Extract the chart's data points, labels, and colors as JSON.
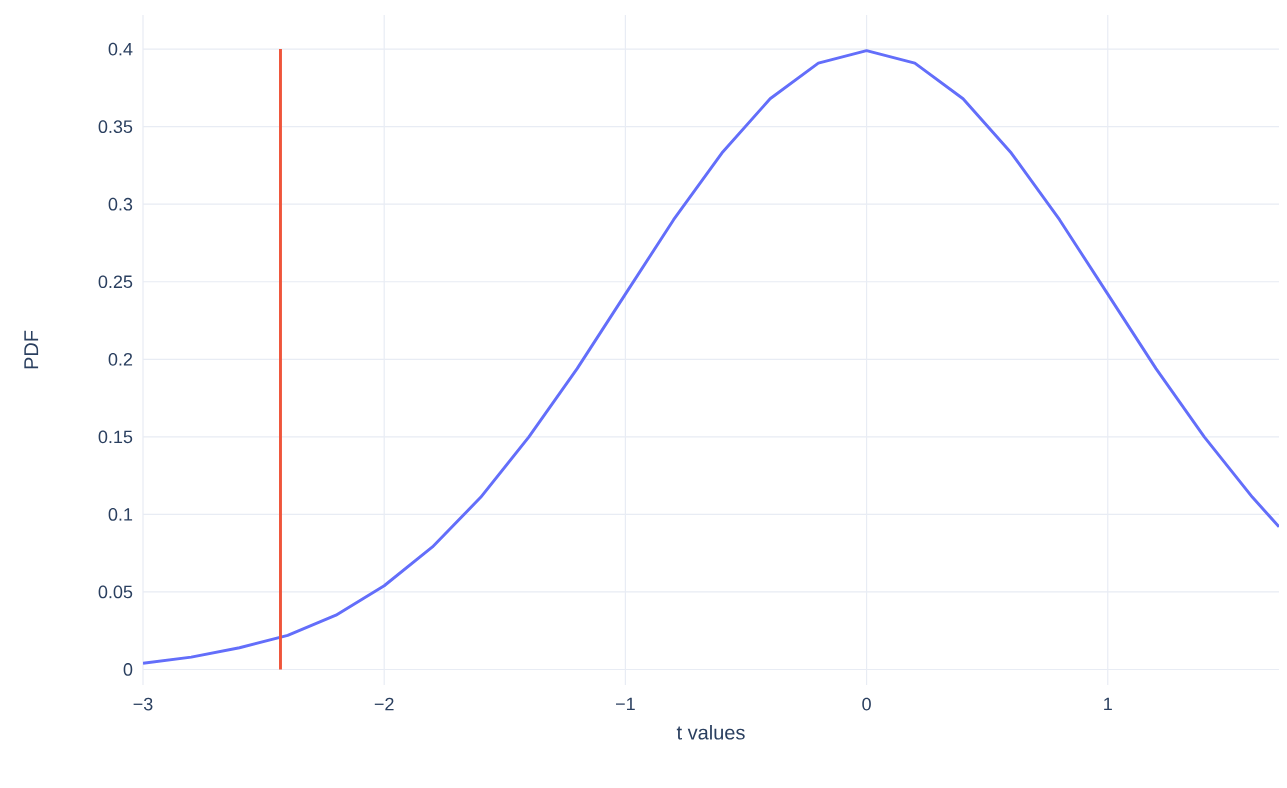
{
  "chart_data": {
    "type": "line",
    "xlabel": "t values",
    "ylabel": "PDF",
    "xlim": [
      -3,
      1.71
    ],
    "ylim": [
      -0.01,
      0.422
    ],
    "xticks": [
      {
        "value": -3,
        "label": "−3"
      },
      {
        "value": -2,
        "label": "−2"
      },
      {
        "value": -1,
        "label": "−1"
      },
      0,
      1
    ],
    "yticks": [
      0,
      0.05,
      0.1,
      0.15,
      0.2,
      0.25,
      0.3,
      0.35,
      0.4
    ],
    "grid": true,
    "series": [
      {
        "color": "#636efa",
        "x": [
          -3.0,
          -2.8,
          -2.6,
          -2.4,
          -2.2,
          -2.0,
          -1.8,
          -1.6,
          -1.4,
          -1.2,
          -1.0,
          -0.8,
          -0.6,
          -0.4,
          -0.2,
          0.0,
          0.2,
          0.4,
          0.6,
          0.8,
          1.0,
          1.2,
          1.4,
          1.6,
          1.71
        ],
        "values": [
          0.004,
          0.008,
          0.014,
          0.022,
          0.035,
          0.054,
          0.079,
          0.111,
          0.15,
          0.194,
          0.242,
          0.29,
          0.333,
          0.368,
          0.391,
          0.399,
          0.391,
          0.368,
          0.333,
          0.29,
          0.242,
          0.194,
          0.15,
          0.111,
          0.092
        ]
      },
      {
        "color": "#ef553b",
        "x": [
          -2.43,
          -2.43
        ],
        "values": [
          0,
          0.4
        ]
      }
    ]
  }
}
